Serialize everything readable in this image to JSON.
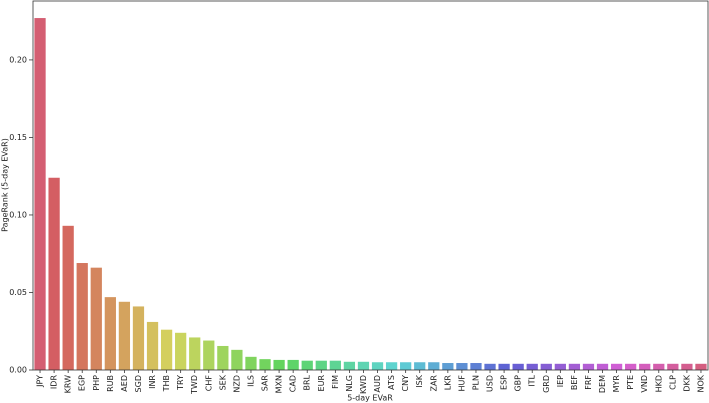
{
  "chart_data": {
    "type": "bar",
    "x_label": "5-day EVaR",
    "y_label": "PageRank (5-day EVaR)",
    "categories": [
      "JPY",
      "IDR",
      "KRW",
      "EGP",
      "PHP",
      "RUB",
      "AED",
      "SGD",
      "INR",
      "THB",
      "TRY",
      "TWD",
      "CHF",
      "SEK",
      "NZD",
      "ILS",
      "SAR",
      "MXN",
      "CAD",
      "BRL",
      "EUR",
      "FIM",
      "NLG",
      "KWD",
      "AUD",
      "ATS",
      "CNY",
      "ISK",
      "ZAR",
      "LKR",
      "HUF",
      "PLN",
      "USD",
      "ESP",
      "GBP",
      "ITL",
      "GRD",
      "IEP",
      "BEF",
      "FRF",
      "DEM",
      "MYR",
      "PTE",
      "VND",
      "HKD",
      "CLP",
      "DKK",
      "NOK"
    ],
    "values": [
      0.227,
      0.124,
      0.093,
      0.069,
      0.066,
      0.047,
      0.044,
      0.041,
      0.031,
      0.026,
      0.024,
      0.021,
      0.019,
      0.0155,
      0.013,
      0.0085,
      0.007,
      0.0065,
      0.0065,
      0.006,
      0.006,
      0.006,
      0.0053,
      0.0053,
      0.005,
      0.005,
      0.005,
      0.005,
      0.005,
      0.0045,
      0.0045,
      0.0045,
      0.004,
      0.004,
      0.004,
      0.004,
      0.004,
      0.004,
      0.004,
      0.004,
      0.004,
      0.004,
      0.004,
      0.004,
      0.004,
      0.004,
      0.004,
      0.004
    ],
    "palette": "husl",
    "ylim": [
      0,
      0.238
    ],
    "yticks": [
      {
        "value": 0,
        "label": "0.00"
      },
      {
        "value": 0.05,
        "label": "0.05"
      },
      {
        "value": 0.1,
        "label": "0.10"
      },
      {
        "value": 0.15,
        "label": "0.15"
      },
      {
        "value": 0.2,
        "label": "0.20"
      }
    ],
    "grid": false
  }
}
